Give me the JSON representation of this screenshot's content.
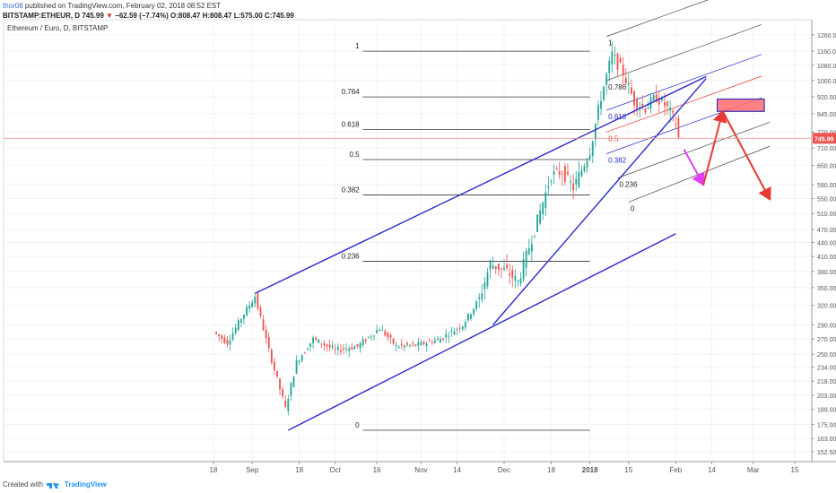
{
  "header": {
    "line1_user": "thor08",
    "line1_rest": "published on TradingView.com, February 02, 2018 08:52 EST",
    "symbol": "BITSTAMP:ETHEUR, D",
    "last": "745.99",
    "change": "−62.59 (−7.74%)",
    "ohlc": "O:808.47 H:808.47 L:575.00 C:745.99"
  },
  "legend_title": "Ethereum / Euro, D, BITSTAMP",
  "footer": {
    "created": "Created with",
    "brand": "TradingView"
  },
  "colors": {
    "up": "#26a69a",
    "down": "#ef5350",
    "blue": "#2a2ad0",
    "red": "#e53935",
    "pink": "#e040fb",
    "grid": "#ececec"
  },
  "chart_data": {
    "type": "candlestick",
    "symbol": "BITSTAMP:ETHEUR",
    "timeframe": "D",
    "log_scale": true,
    "ylim": [
      145,
      1300
    ],
    "price_ticks": [
      "1260.00",
      "1160.00",
      "1080.00",
      "1000.00",
      "920.00",
      "845.00",
      "770.00",
      "710.00",
      "650.00",
      "590.00",
      "550.00",
      "510.00",
      "470.00",
      "440.00",
      "410.00",
      "380.00",
      "350.00",
      "320.00",
      "290.00",
      "270.00",
      "250.00",
      "234.00",
      "218.00",
      "203.00",
      "189.00",
      "175.00",
      "163.00",
      "152.50"
    ],
    "date_ticks": [
      {
        "label": "18",
        "day": 0
      },
      {
        "label": "Sep",
        "day": 14
      },
      {
        "label": "18",
        "day": 31
      },
      {
        "label": "Oct",
        "day": 44
      },
      {
        "label": "16",
        "day": 59
      },
      {
        "label": "Nov",
        "day": 75
      },
      {
        "label": "14",
        "day": 88
      },
      {
        "label": "Dec",
        "day": 105
      },
      {
        "label": "18",
        "day": 122
      },
      {
        "label": "2018",
        "day": 136
      },
      {
        "label": "15",
        "day": 150
      },
      {
        "label": "Feb",
        "day": 167
      },
      {
        "label": "14",
        "day": 180
      },
      {
        "label": "Mar",
        "day": 195
      },
      {
        "label": "15",
        "day": 210
      }
    ],
    "last_price": 745.99,
    "anchors": [
      {
        "day": 0,
        "price": 280
      },
      {
        "day": 5,
        "price": 265
      },
      {
        "day": 10,
        "price": 300
      },
      {
        "day": 15,
        "price": 335
      },
      {
        "day": 20,
        "price": 255
      },
      {
        "day": 26,
        "price": 190
      },
      {
        "day": 30,
        "price": 240
      },
      {
        "day": 36,
        "price": 270
      },
      {
        "day": 44,
        "price": 255
      },
      {
        "day": 52,
        "price": 260
      },
      {
        "day": 60,
        "price": 285
      },
      {
        "day": 66,
        "price": 260
      },
      {
        "day": 74,
        "price": 262
      },
      {
        "day": 82,
        "price": 270
      },
      {
        "day": 90,
        "price": 290
      },
      {
        "day": 96,
        "price": 330
      },
      {
        "day": 100,
        "price": 395
      },
      {
        "day": 106,
        "price": 380
      },
      {
        "day": 110,
        "price": 360
      },
      {
        "day": 116,
        "price": 470
      },
      {
        "day": 122,
        "price": 620
      },
      {
        "day": 126,
        "price": 630
      },
      {
        "day": 130,
        "price": 580
      },
      {
        "day": 136,
        "price": 700
      },
      {
        "day": 140,
        "price": 920
      },
      {
        "day": 144,
        "price": 1140
      },
      {
        "day": 148,
        "price": 1040
      },
      {
        "day": 152,
        "price": 900
      },
      {
        "day": 156,
        "price": 870
      },
      {
        "day": 160,
        "price": 920
      },
      {
        "day": 164,
        "price": 870
      },
      {
        "day": 167,
        "price": 808.47
      },
      {
        "day": 168,
        "price": 745.99
      }
    ],
    "fib_levels": [
      {
        "ratio": "1",
        "price": 1160
      },
      {
        "ratio": "0.764",
        "price": 920
      },
      {
        "ratio": "0.618",
        "price": 780
      },
      {
        "ratio": "0.5",
        "price": 670
      },
      {
        "ratio": "0.382",
        "price": 560
      },
      {
        "ratio": "0.236",
        "price": 400
      },
      {
        "ratio": "0",
        "price": 170
      }
    ],
    "fib_range_days": [
      54,
      136
    ],
    "channel_fib_labels": [
      "1",
      "0.786",
      "0.618",
      "0.5",
      "0.382",
      "0.236",
      "0"
    ],
    "trendlines": [
      {
        "name": "upper-wedge-line",
        "color": "blue",
        "from": {
          "day": 15,
          "price": 340
        },
        "to": {
          "day": 178,
          "price": 1020
        }
      },
      {
        "name": "lower-wedge-line",
        "color": "blue",
        "from": {
          "day": 27,
          "price": 170
        },
        "to": {
          "day": 167,
          "price": 460
        }
      },
      {
        "name": "steep-rising-line",
        "color": "blue",
        "from": {
          "day": 101,
          "price": 290
        },
        "to": {
          "day": 178,
          "price": 1010
        }
      }
    ],
    "projections": [
      {
        "name": "pink-projection-arrow",
        "color": "pink",
        "from": {
          "day": 170,
          "price": 705
        },
        "to": {
          "day": 177,
          "price": 590
        }
      },
      {
        "name": "red-up-arrow",
        "color": "red",
        "from": {
          "day": 177,
          "price": 590
        },
        "to": {
          "day": 184,
          "price": 855
        }
      },
      {
        "name": "red-down-arrow",
        "color": "red",
        "from": {
          "day": 184,
          "price": 855
        },
        "to": {
          "day": 201,
          "price": 548
        }
      }
    ],
    "target_zone": {
      "color": "red",
      "day_from": 182,
      "day_to": 199,
      "price_low": 855,
      "price_high": 910
    }
  }
}
